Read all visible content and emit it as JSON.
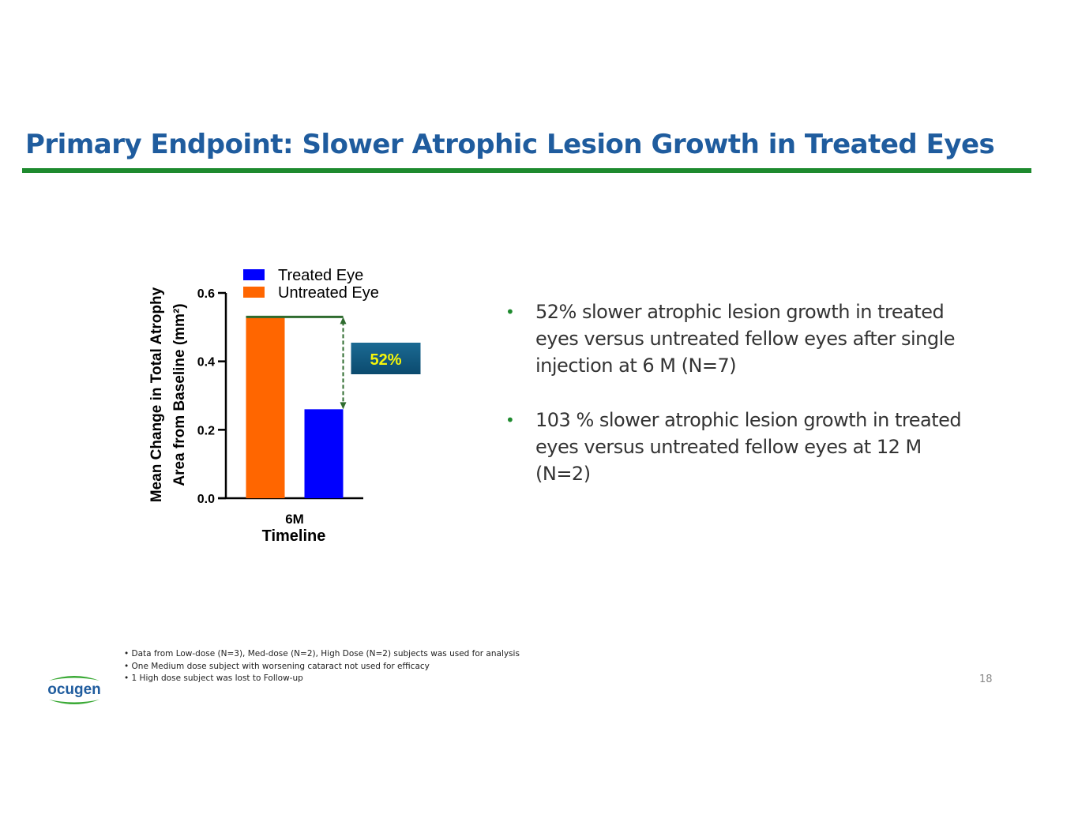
{
  "header": {
    "title": "Primary Endpoint: Slower Atrophic Lesion Growth in Treated Eyes"
  },
  "chart_data": {
    "type": "bar",
    "categories": [
      "6M"
    ],
    "series": [
      {
        "name": "Untreated Eye",
        "color": "#ff6600",
        "values": [
          0.53
        ]
      },
      {
        "name": "Treated Eye",
        "color": "#0000ff",
        "values": [
          0.26
        ]
      }
    ],
    "ylim": [
      0,
      0.6
    ],
    "yticks": [
      {
        "value": 0,
        "label": "0.0"
      },
      0.2,
      0.4,
      0.6
    ],
    "y_label": [
      "Mean Change in Total Atrophy",
      "Area from Baseline (mm²)"
    ],
    "x_label": "Timeline",
    "annotation": "52%",
    "annotation_color": "#2e6b2e"
  },
  "bullets": [
    "52% slower atrophic lesion growth in treated eyes versus untreated fellow eyes after single injection at 6 M (N=7)",
    "103 % slower atrophic lesion growth in treated eyes versus untreated fellow eyes at 12 M (N=2)"
  ],
  "footnotes": [
    "Data from Low-dose (N=3), Med-dose (N=2), High Dose (N=2) subjects was used for analysis",
    "One Medium dose subject with worsening cataract not used for efficacy",
    "1 High dose subject was lost to Follow-up"
  ],
  "logo": "ocugen",
  "page_number": "18"
}
